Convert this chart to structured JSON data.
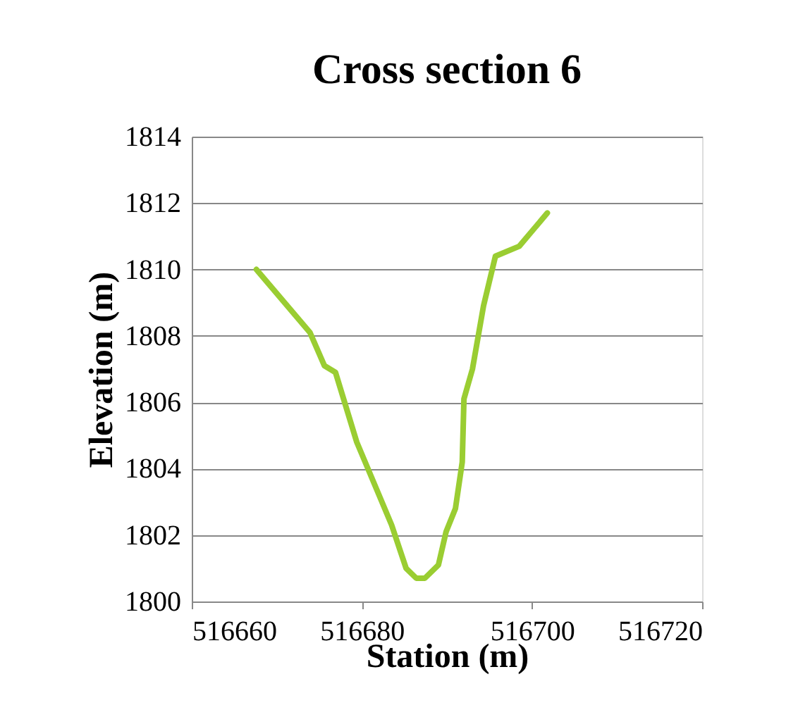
{
  "chart_data": {
    "type": "line",
    "title": "Cross section 6",
    "xlabel": "Station (m)",
    "ylabel": "Elevation (m)",
    "xlim": [
      516660,
      516720
    ],
    "xticks": [
      516660,
      516680,
      516700,
      516720
    ],
    "ylim": [
      1800,
      1814
    ],
    "yticks": [
      1800,
      1802,
      1804,
      1806,
      1808,
      1810,
      1812,
      1814
    ],
    "grid": "y",
    "series": [
      {
        "color": "#9acd32",
        "x": [
          516667.6,
          516673.9,
          516675.6,
          516676.9,
          516679.4,
          516683.5,
          516685.2,
          516686.4,
          516687.4,
          516689.0,
          516689.9,
          516691.0,
          516691.8,
          516692.0,
          516693.0,
          516694.3,
          516695.7,
          516698.5,
          516701.8
        ],
        "values": [
          1810.0,
          1808.1,
          1807.1,
          1806.9,
          1804.8,
          1802.3,
          1801.0,
          1800.7,
          1800.7,
          1801.1,
          1802.1,
          1802.8,
          1804.2,
          1806.1,
          1807.0,
          1808.9,
          1810.4,
          1810.7,
          1811.7
        ]
      }
    ]
  }
}
